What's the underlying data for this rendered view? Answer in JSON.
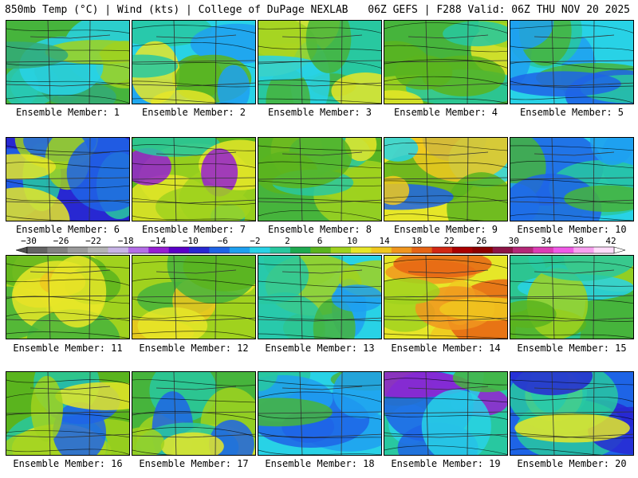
{
  "header": {
    "left": "850mb Temp (°C) | Wind (kts) | College of DuPage NEXLAB",
    "right": "06Z GEFS | F288 Valid: 06Z THU NOV 20 2025"
  },
  "colorbar": {
    "labels": [
      "-30",
      "-26",
      "-22",
      "-18",
      "-14",
      "-10",
      "-6",
      "-2",
      "2",
      "6",
      "10",
      "14",
      "18",
      "22",
      "26",
      "30",
      "34",
      "38",
      "42"
    ],
    "colors": [
      "#646464",
      "#828282",
      "#9b9b9b",
      "#b4b4b4",
      "#c8b4e6",
      "#b46ee6",
      "#961ed2",
      "#5a00c8",
      "#2828d2",
      "#1e64e6",
      "#1ea0f0",
      "#28d2e6",
      "#28c8a0",
      "#1eaa50",
      "#5ab41e",
      "#a0d21e",
      "#e6e628",
      "#f0c81e",
      "#f0961e",
      "#e66414",
      "#d22814",
      "#aa0000",
      "#8c0000",
      "#8c1446",
      "#b42878",
      "#dc3cb4",
      "#f05ae6",
      "#f8a0f0",
      "#ffdcfa"
    ]
  },
  "panels": [
    {
      "label": "Ensemble Member: 1",
      "palette": [
        "#46b43c",
        "#32aa78",
        "#28c8b4",
        "#28d2e6",
        "#a0d21e"
      ]
    },
    {
      "label": "Ensemble Member: 2",
      "palette": [
        "#28d2e6",
        "#1ea0f0",
        "#28c8a0",
        "#5ab41e",
        "#e6e628"
      ]
    },
    {
      "label": "Ensemble Member: 3",
      "palette": [
        "#28c8a0",
        "#46b43c",
        "#a0d21e",
        "#e6e628",
        "#28d2e6"
      ]
    },
    {
      "label": "Ensemble Member: 4",
      "palette": [
        "#46b43c",
        "#5ab41e",
        "#a0d21e",
        "#e6e628",
        "#28c8a0"
      ]
    },
    {
      "label": "Ensemble Member: 5",
      "palette": [
        "#28d2e6",
        "#1ea0f0",
        "#28c8a0",
        "#46b43c",
        "#1e64e6"
      ]
    },
    {
      "label": "Ensemble Member: 6",
      "palette": [
        "#2828d2",
        "#1e64e6",
        "#28c8a0",
        "#a0d21e",
        "#e6e628"
      ]
    },
    {
      "label": "Ensemble Member: 7",
      "palette": [
        "#5ab41e",
        "#a0d21e",
        "#e6e628",
        "#961ed2",
        "#28c8a0"
      ]
    },
    {
      "label": "Ensemble Member: 8",
      "palette": [
        "#46b43c",
        "#5ab41e",
        "#e6e628",
        "#a0d21e",
        "#28c8a0"
      ]
    },
    {
      "label": "Ensemble Member: 9",
      "palette": [
        "#e6e628",
        "#f0c81e",
        "#5ab41e",
        "#1e64e6",
        "#28d2e6"
      ]
    },
    {
      "label": "Ensemble Member: 10",
      "palette": [
        "#28d2e6",
        "#1ea0f0",
        "#28c8a0",
        "#1e64e6",
        "#46b43c"
      ]
    },
    {
      "label": "Ensemble Member: 11",
      "palette": [
        "#a0d21e",
        "#e6e628",
        "#5ab41e",
        "#46b43c",
        "#f0c81e"
      ]
    },
    {
      "label": "Ensemble Member: 12",
      "palette": [
        "#a0d21e",
        "#e6e628",
        "#46b43c",
        "#5ab41e",
        "#f0c81e"
      ]
    },
    {
      "label": "Ensemble Member: 13",
      "palette": [
        "#28d2e6",
        "#28c8a0",
        "#46b43c",
        "#a0d21e",
        "#1ea0f0"
      ]
    },
    {
      "label": "Ensemble Member: 14",
      "palette": [
        "#e6e628",
        "#f0c81e",
        "#f0961e",
        "#a0d21e",
        "#e66414"
      ]
    },
    {
      "label": "Ensemble Member: 15",
      "palette": [
        "#46b43c",
        "#28c8a0",
        "#28d2e6",
        "#a0d21e",
        "#5ab41e"
      ]
    },
    {
      "label": "Ensemble Member: 16",
      "palette": [
        "#5ab41e",
        "#a0d21e",
        "#28c8a0",
        "#1e64e6",
        "#e6e628"
      ]
    },
    {
      "label": "Ensemble Member: 17",
      "palette": [
        "#46b43c",
        "#a0d21e",
        "#28c8a0",
        "#1e64e6",
        "#e6e628"
      ]
    },
    {
      "label": "Ensemble Member: 18",
      "palette": [
        "#28d2e6",
        "#1ea0f0",
        "#1e64e6",
        "#28c8a0",
        "#46b43c"
      ]
    },
    {
      "label": "Ensemble Member: 19",
      "palette": [
        "#28c8a0",
        "#28d2e6",
        "#1e64e6",
        "#961ed2",
        "#46b43c"
      ]
    },
    {
      "label": "Ensemble Member: 20",
      "palette": [
        "#1e64e6",
        "#2828d2",
        "#28d2e6",
        "#28c8a0",
        "#e6e628"
      ]
    }
  ]
}
